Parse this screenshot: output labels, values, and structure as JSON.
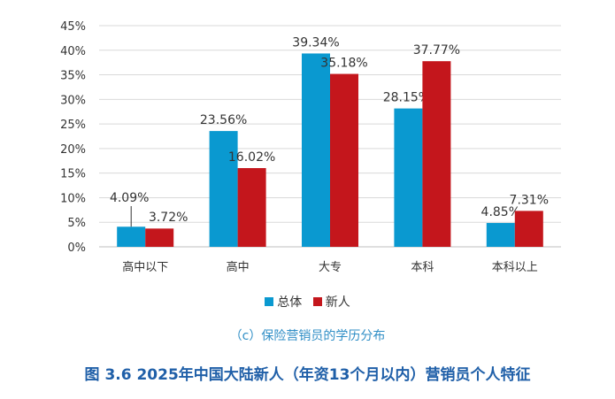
{
  "chart_data": {
    "type": "bar",
    "categories": [
      "高中以下",
      "高中",
      "大专",
      "本科",
      "本科以上"
    ],
    "series": [
      {
        "name": "总体",
        "values": [
          4.09,
          23.56,
          39.34,
          28.15,
          4.85
        ],
        "labels": [
          "4.09%",
          "23.56%",
          "39.34%",
          "28.15%",
          "4.85%"
        ],
        "color": "#0a99d0"
      },
      {
        "name": "新人",
        "values": [
          3.72,
          16.02,
          35.18,
          37.77,
          7.31
        ],
        "labels": [
          "3.72%",
          "16.02%",
          "35.18%",
          "37.77%",
          "7.31%"
        ],
        "color": "#c4161c"
      }
    ],
    "ylim": [
      0,
      45
    ],
    "yticks": [
      "0%",
      "5%",
      "10%",
      "15%",
      "20%",
      "25%",
      "30%",
      "35%",
      "40%",
      "45%"
    ],
    "grid": true,
    "legend": "bottom"
  },
  "subcaption": "（c）保险营销员的学历分布",
  "figure_caption": "图 3.6 2025年中国大陆新人（年资13个月以内）营销员个人特征"
}
